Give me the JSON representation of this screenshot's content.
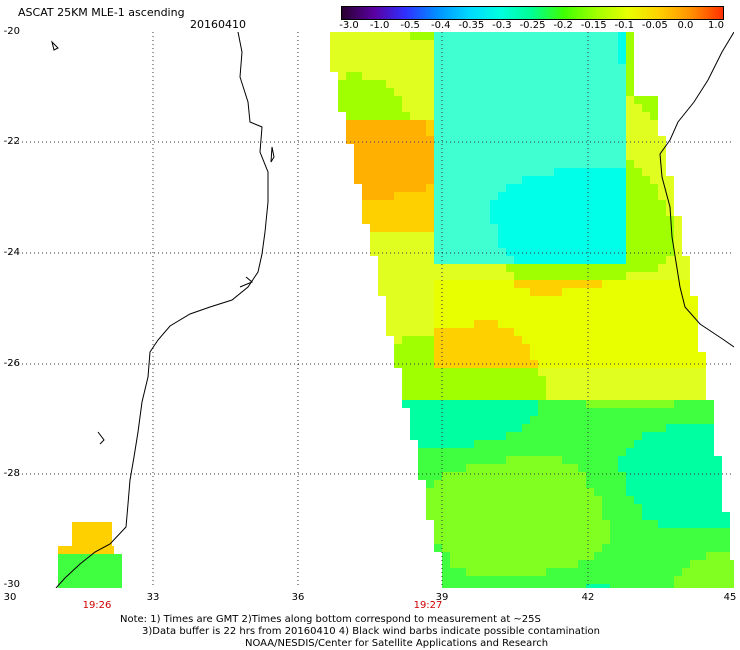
{
  "header": {
    "title": "ASCAT 25KM MLE-1 ascending",
    "date": "20160410"
  },
  "color_scale": {
    "labels": [
      "-3.0",
      "-1.0",
      "-0.5",
      "-0.4",
      "-0.35",
      "-0.3",
      "-0.25",
      "-0.2",
      "-0.15",
      "-0.1",
      "-0.05",
      "0.0",
      "1.0"
    ],
    "colors": [
      "#2a0030",
      "#5a00a0",
      "#3030ff",
      "#0090ff",
      "#00d8ff",
      "#00ffe0",
      "#00ff90",
      "#40ff00",
      "#a0ff00",
      "#e8ff00",
      "#ffd000",
      "#ff9000",
      "#ff3000"
    ]
  },
  "map": {
    "lat_labels": [
      "-20",
      "-22",
      "-24",
      "-26",
      "-28",
      "-30"
    ],
    "lon_labels": [
      "30",
      "33",
      "36",
      "39",
      "42",
      "45"
    ],
    "time_labels": [
      {
        "text": "19:26",
        "lon": 31.8
      },
      {
        "text": "19:27",
        "lon": 38.6
      }
    ]
  },
  "footer": {
    "line1": "Note: 1) Times are GMT 2)Times along bottom correspond to measurement at ~25S",
    "line2": "3)Data buffer is 22 hrs from 20160410 4) Black wind barbs indicate possible contamination",
    "line3": "NOAA/NESDIS/Center for Satellite Applications and Research"
  }
}
